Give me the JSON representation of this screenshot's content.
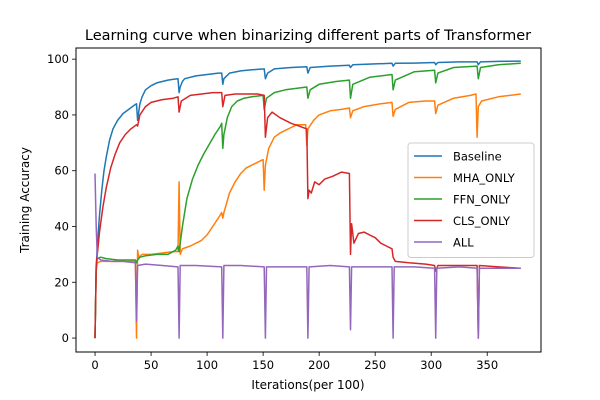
{
  "chart_data": {
    "type": "line",
    "title": "Learning curve when binarizing different parts of Transformer",
    "xlabel": "Iterations(per 100)",
    "ylabel": "Training Accuracy",
    "xlim": [
      -17,
      398
    ],
    "ylim": [
      -5,
      104
    ],
    "xticks": [
      0,
      50,
      100,
      150,
      200,
      250,
      300,
      350
    ],
    "yticks": [
      0,
      20,
      40,
      60,
      80,
      100
    ],
    "grid": false,
    "legend_position": "center-right",
    "series": [
      {
        "name": "Baseline",
        "color": "#1f77b4",
        "points": [
          [
            0,
            0
          ],
          [
            1,
            25
          ],
          [
            2,
            33
          ],
          [
            4,
            44
          ],
          [
            6,
            53
          ],
          [
            8,
            60
          ],
          [
            10,
            65
          ],
          [
            13,
            71
          ],
          [
            16,
            75
          ],
          [
            20,
            78
          ],
          [
            25,
            80.5
          ],
          [
            30,
            82
          ],
          [
            35,
            83.5
          ],
          [
            37,
            84
          ],
          [
            38,
            78
          ],
          [
            39,
            81
          ],
          [
            40,
            84
          ],
          [
            42,
            86.5
          ],
          [
            45,
            89
          ],
          [
            50,
            90.5
          ],
          [
            55,
            91.5
          ],
          [
            60,
            92
          ],
          [
            65,
            92.5
          ],
          [
            70,
            92.8
          ],
          [
            74,
            93
          ],
          [
            75,
            88
          ],
          [
            76,
            90
          ],
          [
            78,
            92
          ],
          [
            80,
            93
          ],
          [
            90,
            94
          ],
          [
            100,
            94.5
          ],
          [
            110,
            95
          ],
          [
            113,
            95
          ],
          [
            114,
            91
          ],
          [
            115,
            93
          ],
          [
            120,
            95
          ],
          [
            130,
            95.8
          ],
          [
            140,
            96.2
          ],
          [
            151,
            96.5
          ],
          [
            152,
            93
          ],
          [
            154,
            95
          ],
          [
            160,
            96.5
          ],
          [
            175,
            97
          ],
          [
            189,
            97.3
          ],
          [
            190,
            95
          ],
          [
            192,
            97
          ],
          [
            210,
            97.5
          ],
          [
            227,
            97.8
          ],
          [
            228,
            97
          ],
          [
            230,
            98
          ],
          [
            250,
            98.3
          ],
          [
            265,
            98.5
          ],
          [
            266,
            97.5
          ],
          [
            268,
            98.5
          ],
          [
            285,
            98.6
          ],
          [
            303,
            98.8
          ],
          [
            304,
            98
          ],
          [
            306,
            98.8
          ],
          [
            325,
            99
          ],
          [
            341,
            99
          ],
          [
            342,
            98
          ],
          [
            344,
            99
          ],
          [
            360,
            99.2
          ],
          [
            380,
            99.3
          ]
        ]
      },
      {
        "name": "MHA_ONLY",
        "color": "#ff7f0e",
        "points": [
          [
            0,
            0
          ],
          [
            1,
            24
          ],
          [
            2,
            27
          ],
          [
            5,
            27.5
          ],
          [
            15,
            27.5
          ],
          [
            25,
            27.5
          ],
          [
            36,
            27.5
          ],
          [
            37,
            0
          ],
          [
            38,
            31.5
          ],
          [
            39,
            29
          ],
          [
            42,
            30
          ],
          [
            50,
            30
          ],
          [
            60,
            30.5
          ],
          [
            70,
            31
          ],
          [
            74,
            31
          ],
          [
            75,
            56
          ],
          [
            76,
            30
          ],
          [
            78,
            32
          ],
          [
            85,
            33
          ],
          [
            95,
            35
          ],
          [
            100,
            37
          ],
          [
            105,
            40
          ],
          [
            110,
            43
          ],
          [
            113,
            45
          ],
          [
            114,
            43
          ],
          [
            115,
            45
          ],
          [
            120,
            52
          ],
          [
            125,
            56
          ],
          [
            130,
            59
          ],
          [
            135,
            61
          ],
          [
            140,
            62
          ],
          [
            145,
            63
          ],
          [
            150,
            64
          ],
          [
            151,
            53
          ],
          [
            152,
            62
          ],
          [
            155,
            68
          ],
          [
            160,
            72
          ],
          [
            165,
            73.5
          ],
          [
            170,
            74.5
          ],
          [
            175,
            75.5
          ],
          [
            180,
            76.5
          ],
          [
            188,
            76.5
          ],
          [
            189,
            69
          ],
          [
            190,
            75
          ],
          [
            195,
            78
          ],
          [
            200,
            80
          ],
          [
            210,
            81.5
          ],
          [
            220,
            82
          ],
          [
            227,
            82.5
          ],
          [
            228,
            79
          ],
          [
            230,
            81.5
          ],
          [
            240,
            83
          ],
          [
            255,
            84
          ],
          [
            265,
            84.5
          ],
          [
            266,
            79.5
          ],
          [
            268,
            82
          ],
          [
            280,
            84.5
          ],
          [
            295,
            85
          ],
          [
            303,
            85
          ],
          [
            304,
            80.5
          ],
          [
            306,
            83.5
          ],
          [
            320,
            86
          ],
          [
            335,
            87
          ],
          [
            340,
            87.5
          ],
          [
            341,
            72
          ],
          [
            342,
            83
          ],
          [
            345,
            85
          ],
          [
            360,
            86.5
          ],
          [
            380,
            87.5
          ]
        ]
      },
      {
        "name": "FFN_ONLY",
        "color": "#2ca02c",
        "points": [
          [
            0,
            0
          ],
          [
            1,
            26
          ],
          [
            2,
            28.5
          ],
          [
            5,
            29
          ],
          [
            10,
            28.5
          ],
          [
            20,
            28
          ],
          [
            30,
            28
          ],
          [
            36,
            28
          ],
          [
            37,
            27
          ],
          [
            38,
            28
          ],
          [
            40,
            29
          ],
          [
            45,
            29.5
          ],
          [
            55,
            30
          ],
          [
            65,
            30
          ],
          [
            72,
            31.5
          ],
          [
            74,
            33
          ],
          [
            75,
            31
          ],
          [
            78,
            40
          ],
          [
            82,
            50
          ],
          [
            87,
            57
          ],
          [
            92,
            62
          ],
          [
            97,
            66
          ],
          [
            102,
            69.5
          ],
          [
            107,
            73
          ],
          [
            112,
            76
          ],
          [
            113,
            77
          ],
          [
            114,
            68
          ],
          [
            115,
            73
          ],
          [
            118,
            79
          ],
          [
            122,
            83
          ],
          [
            127,
            85
          ],
          [
            133,
            86
          ],
          [
            140,
            86.5
          ],
          [
            150,
            87
          ],
          [
            151,
            82
          ],
          [
            153,
            86
          ],
          [
            160,
            88
          ],
          [
            170,
            89
          ],
          [
            189,
            90
          ],
          [
            190,
            86
          ],
          [
            192,
            89
          ],
          [
            200,
            91
          ],
          [
            215,
            92
          ],
          [
            227,
            92.5
          ],
          [
            228,
            86
          ],
          [
            230,
            91
          ],
          [
            245,
            93.5
          ],
          [
            265,
            94.5
          ],
          [
            266,
            89
          ],
          [
            268,
            92.5
          ],
          [
            285,
            95.5
          ],
          [
            303,
            96
          ],
          [
            304,
            91.5
          ],
          [
            306,
            95
          ],
          [
            320,
            97
          ],
          [
            341,
            97.5
          ],
          [
            342,
            93
          ],
          [
            344,
            97
          ],
          [
            360,
            98
          ],
          [
            380,
            98.5
          ]
        ]
      },
      {
        "name": "CLS_ONLY",
        "color": "#d62728",
        "points": [
          [
            0,
            0
          ],
          [
            1,
            26
          ],
          [
            2,
            30
          ],
          [
            4,
            38
          ],
          [
            7,
            47
          ],
          [
            10,
            54
          ],
          [
            14,
            61
          ],
          [
            18,
            66
          ],
          [
            22,
            70
          ],
          [
            27,
            73
          ],
          [
            32,
            75
          ],
          [
            37,
            76.5
          ],
          [
            38,
            76
          ],
          [
            40,
            80
          ],
          [
            45,
            83
          ],
          [
            50,
            84.5
          ],
          [
            60,
            85.5
          ],
          [
            70,
            86
          ],
          [
            74,
            86.5
          ],
          [
            75,
            81
          ],
          [
            77,
            85
          ],
          [
            85,
            87
          ],
          [
            95,
            87.5
          ],
          [
            105,
            88
          ],
          [
            113,
            88
          ],
          [
            114,
            83
          ],
          [
            116,
            87
          ],
          [
            125,
            87.5
          ],
          [
            135,
            87.5
          ],
          [
            145,
            87.5
          ],
          [
            151,
            87
          ],
          [
            152,
            72
          ],
          [
            154,
            79
          ],
          [
            158,
            81
          ],
          [
            165,
            79
          ],
          [
            175,
            77
          ],
          [
            182,
            76
          ],
          [
            189,
            75
          ],
          [
            190,
            50
          ],
          [
            191,
            53
          ],
          [
            193,
            52
          ],
          [
            196,
            56
          ],
          [
            200,
            55
          ],
          [
            205,
            57
          ],
          [
            212,
            58
          ],
          [
            220,
            59.5
          ],
          [
            227,
            59
          ],
          [
            228,
            30
          ],
          [
            229,
            41
          ],
          [
            231,
            34
          ],
          [
            235,
            37.5
          ],
          [
            240,
            38
          ],
          [
            245,
            37
          ],
          [
            250,
            36
          ],
          [
            255,
            34
          ],
          [
            260,
            33
          ],
          [
            265,
            32
          ],
          [
            266,
            29
          ],
          [
            268,
            27.5
          ],
          [
            280,
            27
          ],
          [
            295,
            26.5
          ],
          [
            303,
            26
          ],
          [
            304,
            24
          ],
          [
            306,
            26
          ],
          [
            320,
            26
          ],
          [
            341,
            26
          ],
          [
            342,
            0
          ],
          [
            343,
            26
          ],
          [
            360,
            25.5
          ],
          [
            380,
            25
          ]
        ]
      },
      {
        "name": "ALL",
        "color": "#9467bd",
        "points": [
          [
            0,
            59
          ],
          [
            1,
            40
          ],
          [
            2,
            29
          ],
          [
            5,
            28
          ],
          [
            15,
            27.5
          ],
          [
            25,
            27.5
          ],
          [
            36,
            27
          ],
          [
            37,
            6
          ],
          [
            38,
            26
          ],
          [
            45,
            26.5
          ],
          [
            60,
            26
          ],
          [
            74,
            25.5
          ],
          [
            75,
            0
          ],
          [
            76,
            26
          ],
          [
            90,
            26
          ],
          [
            113,
            25.5
          ],
          [
            114,
            0
          ],
          [
            115,
            26
          ],
          [
            130,
            26
          ],
          [
            151,
            25.5
          ],
          [
            152,
            0
          ],
          [
            153,
            25.5
          ],
          [
            170,
            25.5
          ],
          [
            189,
            25.5
          ],
          [
            190,
            0
          ],
          [
            191,
            25.5
          ],
          [
            210,
            26
          ],
          [
            227,
            25.5
          ],
          [
            228,
            3
          ],
          [
            229,
            25.5
          ],
          [
            250,
            25.5
          ],
          [
            265,
            25.5
          ],
          [
            266,
            0
          ],
          [
            267,
            25.5
          ],
          [
            285,
            25.5
          ],
          [
            303,
            25
          ],
          [
            304,
            0
          ],
          [
            305,
            25
          ],
          [
            325,
            25.5
          ],
          [
            341,
            25
          ],
          [
            342,
            0
          ],
          [
            343,
            25
          ],
          [
            360,
            25
          ],
          [
            380,
            25
          ]
        ]
      }
    ]
  }
}
